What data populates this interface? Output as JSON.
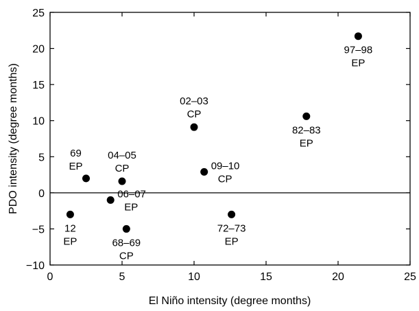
{
  "chart_data": {
    "type": "scatter",
    "title": "",
    "xlabel": "El Niño intensity (degree months)",
    "ylabel": "PDO intensity (degree months)",
    "xlim": [
      0,
      25
    ],
    "ylim": [
      -10,
      25
    ],
    "xticks": [
      0,
      5,
      10,
      15,
      20,
      25
    ],
    "yticks": [
      -10,
      -5,
      0,
      5,
      10,
      15,
      20,
      25
    ],
    "xtick_labels": [
      "0",
      "5",
      "10",
      "15",
      "20",
      "25"
    ],
    "ytick_labels": [
      "−10",
      "−5",
      "0",
      "5",
      "10",
      "15",
      "20",
      "25"
    ],
    "grid": false,
    "zero_line": true,
    "marker_color": "#000000",
    "points": [
      {
        "x": 1.4,
        "y": -3.0,
        "year": "12",
        "type": "EP",
        "label_pos": "below"
      },
      {
        "x": 2.5,
        "y": 2.0,
        "year": "69",
        "type": "EP",
        "label_pos": "above-left"
      },
      {
        "x": 4.2,
        "y": -1.0,
        "year": "06–07",
        "type": "EP",
        "label_pos": "right"
      },
      {
        "x": 5.0,
        "y": 1.6,
        "year": "04–05",
        "type": "CP",
        "label_pos": "above"
      },
      {
        "x": 5.3,
        "y": -5.0,
        "year": "68–69",
        "type": "CP",
        "label_pos": "below"
      },
      {
        "x": 10.0,
        "y": 9.1,
        "year": "02–03",
        "type": "CP",
        "label_pos": "above"
      },
      {
        "x": 10.7,
        "y": 2.9,
        "year": "09–10",
        "type": "CP",
        "label_pos": "right"
      },
      {
        "x": 12.6,
        "y": -3.0,
        "year": "72–73",
        "type": "EP",
        "label_pos": "below"
      },
      {
        "x": 17.8,
        "y": 10.6,
        "year": "82–83",
        "type": "EP",
        "label_pos": "below"
      },
      {
        "x": 21.4,
        "y": 21.7,
        "year": "97–98",
        "type": "EP",
        "label_pos": "below"
      }
    ]
  }
}
